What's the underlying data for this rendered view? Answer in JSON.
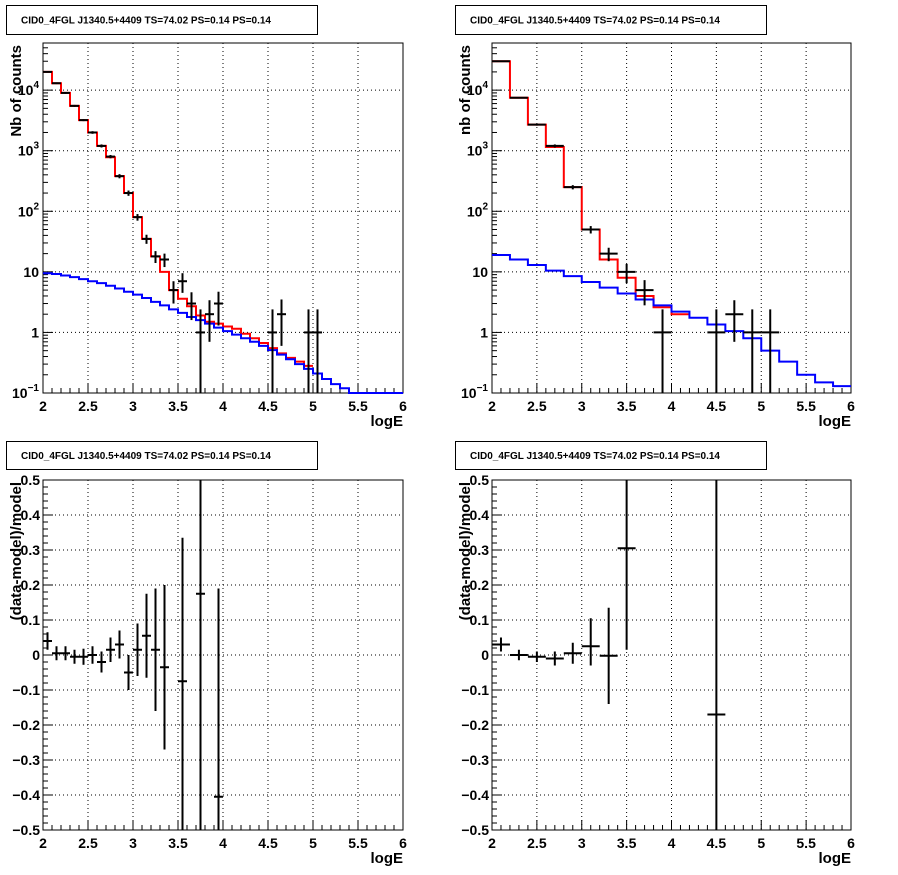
{
  "chart_data": [
    {
      "type": "line",
      "title": "CID0_4FGL J1340.5+4409 TS=74.02 PS=0.14 PS=0.14",
      "xlabel": "logE",
      "ylabel": "Nb of counts",
      "yscale": "log",
      "xlim": [
        2,
        6
      ],
      "ylim": [
        0.1,
        60000
      ],
      "x_ticks": [
        "2",
        "2.5",
        "3",
        "3.5",
        "4",
        "4.5",
        "5",
        "5.5",
        "6"
      ],
      "y_ticks": [
        {
          "value": 0.1,
          "base": "10",
          "exp": "−1"
        },
        {
          "value": 1,
          "text": "1"
        },
        {
          "value": 10,
          "text": "10"
        },
        {
          "value": 100,
          "base": "10",
          "exp": "2"
        },
        {
          "value": 1000,
          "base": "10",
          "exp": "3"
        },
        {
          "value": 10000,
          "base": "10",
          "exp": "4"
        }
      ],
      "grid": true,
      "bin_edges": [
        2.0,
        2.1,
        2.2,
        2.3,
        2.4,
        2.5,
        2.6,
        2.7,
        2.8,
        2.9,
        3.0,
        3.1,
        3.2,
        3.3,
        3.4,
        3.5,
        3.6,
        3.7,
        3.8,
        3.9,
        4.0,
        4.1,
        4.2,
        4.3,
        4.4,
        4.5,
        4.6,
        4.7,
        4.8,
        4.9,
        5.0,
        5.1,
        5.2,
        5.3,
        5.4,
        5.5,
        5.6,
        5.7,
        5.8,
        5.9,
        6.0
      ],
      "series": [
        {
          "color": "#ff0000",
          "style": "step",
          "values": [
            20000,
            13000,
            9000,
            5500,
            3200,
            2000,
            1200,
            780,
            380,
            200,
            80,
            35,
            18,
            10,
            5,
            3.6,
            2.7,
            1.9,
            1.5,
            1.4,
            1.25,
            1.15,
            0.95,
            0.8,
            0.67,
            0.55,
            0.45,
            0.38,
            0.33,
            0.28
          ]
        },
        {
          "color": "#0000ff",
          "style": "step",
          "values": [
            9.5,
            9.2,
            8.7,
            8.2,
            7.6,
            7.0,
            6.5,
            5.9,
            5.3,
            4.7,
            4.2,
            3.7,
            3.2,
            2.8,
            2.4,
            2.1,
            1.8,
            1.6,
            1.4,
            1.2,
            1.05,
            0.92,
            0.8,
            0.7,
            0.6,
            0.51,
            0.43,
            0.36,
            0.3,
            0.25,
            0.21,
            0.17,
            0.14,
            0.12,
            0.1,
            0.1,
            0.1,
            0.1,
            0.1,
            0.1
          ]
        },
        {
          "color": "#000000",
          "style": "errorbar",
          "points": [
            {
              "x": 2.05,
              "y": 20000,
              "lo": 19500,
              "hi": 20500
            },
            {
              "x": 2.15,
              "y": 13000,
              "lo": 12600,
              "hi": 13400
            },
            {
              "x": 2.25,
              "y": 9000,
              "lo": 8700,
              "hi": 9300
            },
            {
              "x": 2.35,
              "y": 5500,
              "lo": 5300,
              "hi": 5700
            },
            {
              "x": 2.45,
              "y": 3200,
              "lo": 3080,
              "hi": 3320
            },
            {
              "x": 2.55,
              "y": 2000,
              "lo": 1900,
              "hi": 2100
            },
            {
              "x": 2.65,
              "y": 1200,
              "lo": 1130,
              "hi": 1270
            },
            {
              "x": 2.75,
              "y": 800,
              "lo": 750,
              "hi": 850
            },
            {
              "x": 2.85,
              "y": 380,
              "lo": 350,
              "hi": 410
            },
            {
              "x": 2.95,
              "y": 200,
              "lo": 180,
              "hi": 220
            },
            {
              "x": 3.05,
              "y": 80,
              "lo": 70,
              "hi": 90
            },
            {
              "x": 3.15,
              "y": 35,
              "lo": 29,
              "hi": 41
            },
            {
              "x": 3.25,
              "y": 18,
              "lo": 14,
              "hi": 22
            },
            {
              "x": 3.35,
              "y": 16,
              "lo": 12,
              "hi": 20
            },
            {
              "x": 3.45,
              "y": 5,
              "lo": 3,
              "hi": 7
            },
            {
              "x": 3.55,
              "y": 7,
              "lo": 4.5,
              "hi": 9.5
            },
            {
              "x": 3.65,
              "y": 3,
              "lo": 1.6,
              "hi": 4.6
            },
            {
              "x": 3.75,
              "y": 1,
              "lo": 0.1,
              "hi": 2.4
            },
            {
              "x": 3.85,
              "y": 2,
              "lo": 0.7,
              "hi": 3.4
            },
            {
              "x": 3.95,
              "y": 3,
              "lo": 1.3,
              "hi": 4.7
            },
            {
              "x": 4.55,
              "y": 1,
              "lo": 0.1,
              "hi": 2.4
            },
            {
              "x": 4.65,
              "y": 2,
              "lo": 0.6,
              "hi": 3.5
            },
            {
              "x": 4.95,
              "y": 1,
              "lo": 0.1,
              "hi": 2.4
            },
            {
              "x": 5.05,
              "y": 1,
              "lo": 0.1,
              "hi": 2.4
            }
          ]
        }
      ]
    },
    {
      "type": "line",
      "title": "CID0_4FGL J1340.5+4409 TS=74.02 PS=0.14 PS=0.14",
      "xlabel": "logE",
      "ylabel": "nb of counts",
      "yscale": "log",
      "xlim": [
        2,
        6
      ],
      "ylim": [
        0.1,
        60000
      ],
      "x_ticks": [
        "2",
        "2.5",
        "3",
        "3.5",
        "4",
        "4.5",
        "5",
        "5.5",
        "6"
      ],
      "y_ticks": [
        {
          "value": 0.1,
          "base": "10",
          "exp": "−1"
        },
        {
          "value": 1,
          "text": "1"
        },
        {
          "value": 10,
          "text": "10"
        },
        {
          "value": 100,
          "base": "10",
          "exp": "2"
        },
        {
          "value": 1000,
          "base": "10",
          "exp": "3"
        },
        {
          "value": 10000,
          "base": "10",
          "exp": "4"
        }
      ],
      "grid": true,
      "bin_edges": [
        2.0,
        2.2,
        2.4,
        2.6,
        2.8,
        3.0,
        3.2,
        3.4,
        3.6,
        3.8,
        4.0,
        4.2,
        4.4,
        4.6,
        4.8,
        5.0,
        5.2,
        5.4,
        5.6,
        5.8,
        6.0
      ],
      "series": [
        {
          "color": "#ff0000",
          "style": "step",
          "values": [
            30000,
            7500,
            2700,
            1150,
            250,
            50,
            16,
            8,
            4,
            2.6,
            2.0
          ]
        },
        {
          "color": "#0000ff",
          "style": "step",
          "values": [
            19,
            16,
            13,
            10.5,
            8.5,
            6.8,
            5.5,
            4.4,
            3.5,
            2.8,
            2.2,
            1.75,
            1.35,
            1.05,
            0.8,
            0.5,
            0.33,
            0.2,
            0.15,
            0.13
          ]
        },
        {
          "color": "#000000",
          "style": "errorbar",
          "points": [
            {
              "x": 2.1,
              "y": 30000,
              "lo": 29500,
              "hi": 30500
            },
            {
              "x": 2.3,
              "y": 7500,
              "lo": 7300,
              "hi": 7700
            },
            {
              "x": 2.5,
              "y": 2700,
              "lo": 2600,
              "hi": 2800
            },
            {
              "x": 2.7,
              "y": 1200,
              "lo": 1130,
              "hi": 1270
            },
            {
              "x": 2.9,
              "y": 250,
              "lo": 230,
              "hi": 270
            },
            {
              "x": 3.1,
              "y": 50,
              "lo": 43,
              "hi": 57
            },
            {
              "x": 3.3,
              "y": 20,
              "lo": 15,
              "hi": 25
            },
            {
              "x": 3.5,
              "y": 10,
              "lo": 6.5,
              "hi": 13.5
            },
            {
              "x": 3.7,
              "y": 5,
              "lo": 2.8,
              "hi": 7.3
            },
            {
              "x": 3.9,
              "y": 1,
              "lo": 0.1,
              "hi": 2.4
            },
            {
              "x": 4.5,
              "y": 1,
              "lo": 0.1,
              "hi": 2.4
            },
            {
              "x": 4.7,
              "y": 2,
              "lo": 0.7,
              "hi": 3.4
            },
            {
              "x": 4.9,
              "y": 1,
              "lo": 0.1,
              "hi": 2.4
            },
            {
              "x": 5.1,
              "y": 1,
              "lo": 0.1,
              "hi": 2.4
            }
          ]
        }
      ]
    },
    {
      "type": "scatter",
      "title": "CID0_4FGL J1340.5+4409 TS=74.02 PS=0.14 PS=0.14",
      "xlabel": "logE",
      "ylabel": "(data-model)/model",
      "yscale": "linear",
      "xlim": [
        2,
        6
      ],
      "ylim": [
        -0.5,
        0.5
      ],
      "x_ticks": [
        "2",
        "2.5",
        "3",
        "3.5",
        "4",
        "4.5",
        "5",
        "5.5",
        "6"
      ],
      "y_ticks": [
        "−0.5",
        "−0.4",
        "−0.3",
        "−0.2",
        "−0.1",
        "0",
        "0.1",
        "0.2",
        "0.3",
        "0.4",
        "0.5"
      ],
      "grid": true,
      "points": [
        {
          "x": 2.05,
          "y": 0.04,
          "lo": 0.015,
          "hi": 0.065,
          "hw": 0.05
        },
        {
          "x": 2.15,
          "y": 0.005,
          "lo": -0.015,
          "hi": 0.025,
          "hw": 0.05
        },
        {
          "x": 2.25,
          "y": 0.005,
          "lo": -0.015,
          "hi": 0.025,
          "hw": 0.05
        },
        {
          "x": 2.35,
          "y": -0.005,
          "lo": -0.025,
          "hi": 0.015,
          "hw": 0.05
        },
        {
          "x": 2.45,
          "y": -0.005,
          "lo": -0.028,
          "hi": 0.018,
          "hw": 0.05
        },
        {
          "x": 2.55,
          "y": 0.0,
          "lo": -0.025,
          "hi": 0.025,
          "hw": 0.05
        },
        {
          "x": 2.65,
          "y": -0.02,
          "lo": -0.05,
          "hi": 0.01,
          "hw": 0.05
        },
        {
          "x": 2.75,
          "y": 0.015,
          "lo": -0.02,
          "hi": 0.05,
          "hw": 0.05
        },
        {
          "x": 2.85,
          "y": 0.03,
          "lo": -0.01,
          "hi": 0.07,
          "hw": 0.05
        },
        {
          "x": 2.95,
          "y": -0.05,
          "lo": -0.1,
          "hi": 0.0,
          "hw": 0.05
        },
        {
          "x": 3.05,
          "y": 0.015,
          "lo": -0.06,
          "hi": 0.09,
          "hw": 0.05
        },
        {
          "x": 3.15,
          "y": 0.055,
          "lo": -0.065,
          "hi": 0.175,
          "hw": 0.05
        },
        {
          "x": 3.25,
          "y": 0.015,
          "lo": -0.16,
          "hi": 0.19,
          "hw": 0.05
        },
        {
          "x": 3.35,
          "y": -0.035,
          "lo": -0.27,
          "hi": 0.2,
          "hw": 0.05
        },
        {
          "x": 3.55,
          "y": -0.075,
          "lo": -0.5,
          "hi": 0.335,
          "hw": 0.05
        },
        {
          "x": 3.75,
          "y": 0.175,
          "lo": -0.5,
          "hi": 0.5,
          "hw": 0.05
        },
        {
          "x": 3.95,
          "y": -0.405,
          "lo": -0.5,
          "hi": 0.19,
          "hw": 0.05
        }
      ]
    },
    {
      "type": "scatter",
      "title": "CID0_4FGL J1340.5+4409 TS=74.02 PS=0.14 PS=0.14",
      "xlabel": "logE",
      "ylabel": "(data-model)/model",
      "yscale": "linear",
      "xlim": [
        2,
        6
      ],
      "ylim": [
        -0.5,
        0.5
      ],
      "x_ticks": [
        "2",
        "2.5",
        "3",
        "3.5",
        "4",
        "4.5",
        "5",
        "5.5",
        "6"
      ],
      "y_ticks": [
        "−0.5",
        "−0.4",
        "−0.3",
        "−0.2",
        "−0.1",
        "0",
        "0.1",
        "0.2",
        "0.3",
        "0.4",
        "0.5"
      ],
      "grid": true,
      "points": [
        {
          "x": 2.1,
          "y": 0.03,
          "lo": 0.01,
          "hi": 0.05,
          "hw": 0.1
        },
        {
          "x": 2.3,
          "y": 0.0,
          "lo": -0.015,
          "hi": 0.015,
          "hw": 0.1
        },
        {
          "x": 2.5,
          "y": -0.005,
          "lo": -0.02,
          "hi": 0.01,
          "hw": 0.1
        },
        {
          "x": 2.7,
          "y": -0.01,
          "lo": -0.03,
          "hi": 0.01,
          "hw": 0.1
        },
        {
          "x": 2.9,
          "y": 0.005,
          "lo": -0.025,
          "hi": 0.035,
          "hw": 0.1
        },
        {
          "x": 3.1,
          "y": 0.025,
          "lo": -0.03,
          "hi": 0.105,
          "hw": 0.1
        },
        {
          "x": 3.3,
          "y": -0.002,
          "lo": -0.14,
          "hi": 0.135,
          "hw": 0.1
        },
        {
          "x": 3.5,
          "y": 0.305,
          "lo": 0.015,
          "hi": 0.5,
          "hw": 0.1
        },
        {
          "x": 4.5,
          "y": -0.17,
          "lo": -0.5,
          "hi": 0.5,
          "hw": 0.1
        }
      ]
    }
  ]
}
